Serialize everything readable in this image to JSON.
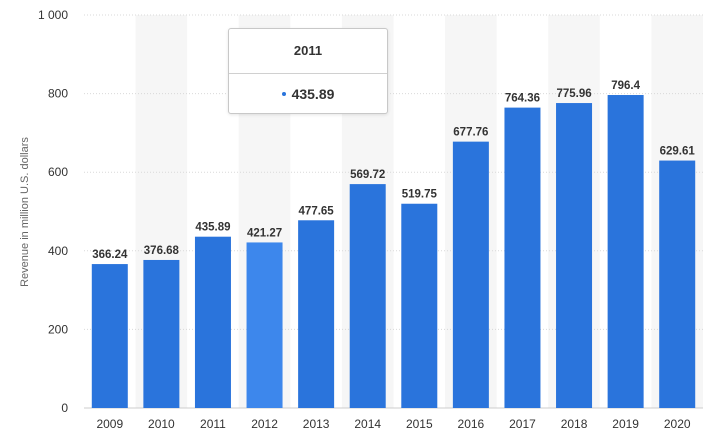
{
  "chart_data": {
    "type": "bar",
    "categories": [
      "2009",
      "2010",
      "2011",
      "2012",
      "2013",
      "2014",
      "2015",
      "2016",
      "2017",
      "2018",
      "2019",
      "2020"
    ],
    "values": [
      366.24,
      376.68,
      435.89,
      421.27,
      477.65,
      569.72,
      519.75,
      677.76,
      764.36,
      775.96,
      796.4,
      629.61
    ],
    "value_labels": [
      "366.24",
      "376.68",
      "435.89",
      "421.27",
      "477.65",
      "569.72",
      "519.75",
      "677.76",
      "764.36",
      "775.96",
      "796.4",
      "629.61"
    ],
    "ylabel": "Revenue in million U.S. dollars",
    "ylim": [
      0,
      1000
    ],
    "yticks": [
      0,
      200,
      400,
      600,
      800,
      1000
    ],
    "ytick_labels": [
      "0",
      "200",
      "400",
      "600",
      "800",
      "1 000"
    ],
    "grid": true,
    "highlighted_category": "2012"
  },
  "tooltip": {
    "title": "2011",
    "value": "435.89"
  },
  "colors": {
    "bar": "#2a74dc",
    "bar_highlight": "#3d87ec",
    "stripe": "#f6f6f6",
    "grid": "#d9d9d9",
    "tooltip_dot": "#2a74dc"
  }
}
